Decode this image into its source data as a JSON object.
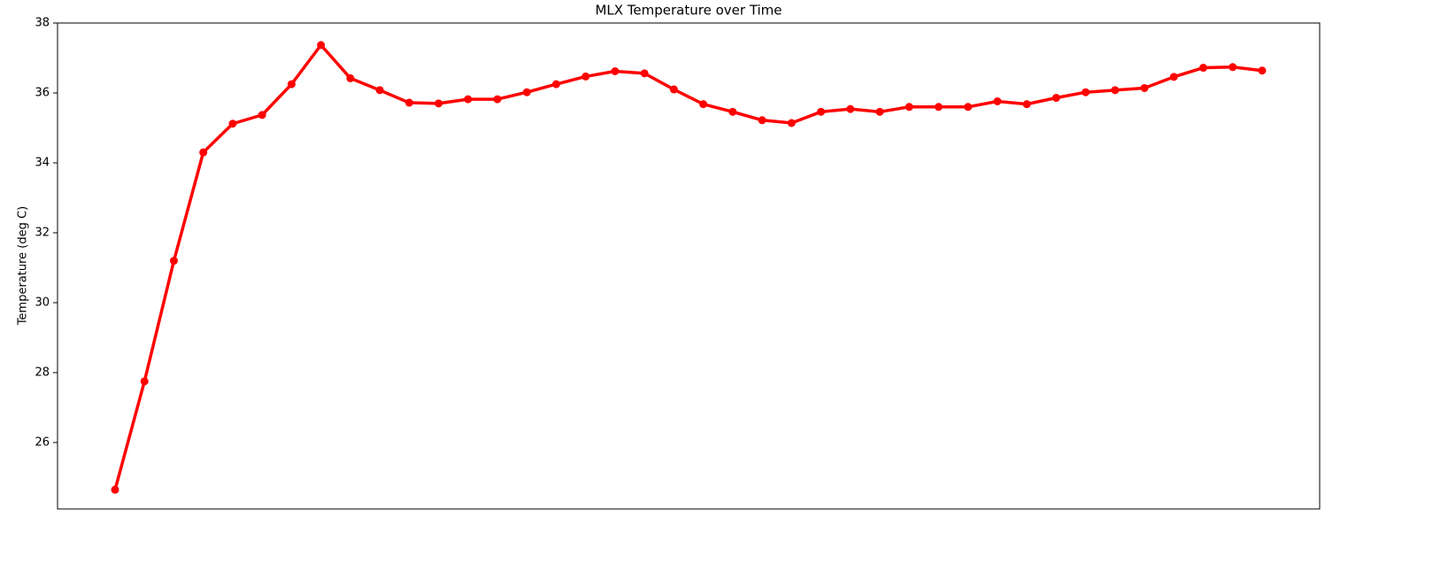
{
  "chart_data": {
    "type": "line",
    "title": "MLX Temperature over Time",
    "y_label": "Temperature (deg C)",
    "series": [
      {
        "name": null,
        "color": "#ff0000",
        "values": [
          24.65,
          27.75,
          31.2,
          34.3,
          35.12,
          35.37,
          36.25,
          37.37,
          36.42,
          36.08,
          35.72,
          35.7,
          35.82,
          35.82,
          36.02,
          36.25,
          36.47,
          36.62,
          36.56,
          36.1,
          35.68,
          35.46,
          35.22,
          35.14,
          35.46,
          35.54,
          35.46,
          35.6,
          35.6,
          35.6,
          35.76,
          35.68,
          35.86,
          36.02,
          36.08,
          36.14,
          36.46,
          36.72,
          36.74,
          36.64
        ]
      }
    ],
    "ylim": [
      24.1,
      38
    ],
    "yticks": [
      26,
      28,
      30,
      32,
      34,
      36,
      38
    ],
    "grid": false
  }
}
